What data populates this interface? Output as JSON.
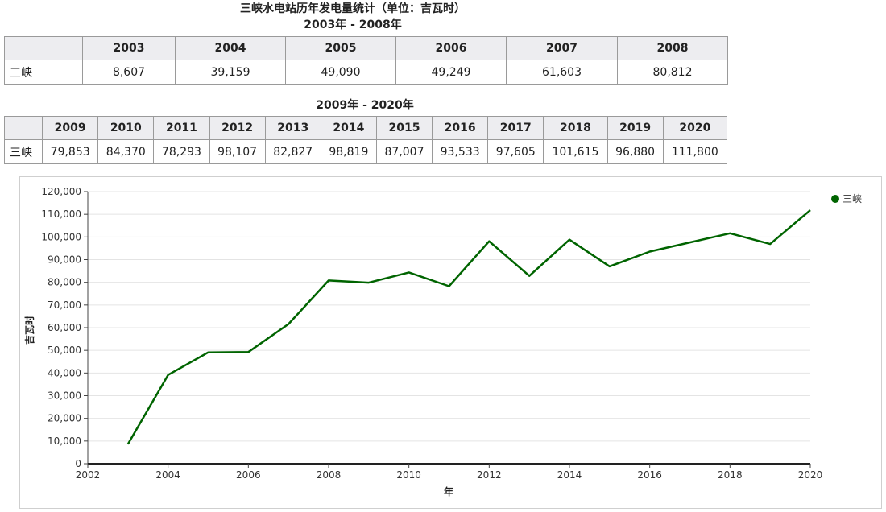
{
  "title": "三峡水电站历年发电量统计（单位：吉瓦时）",
  "table1": {
    "caption": "2003年 - 2008年",
    "row_label": "三峡",
    "years": [
      "2003",
      "2004",
      "2005",
      "2006",
      "2007",
      "2008"
    ],
    "values": [
      "8,607",
      "39,159",
      "49,090",
      "49,249",
      "61,603",
      "80,812"
    ]
  },
  "table2": {
    "caption": "2009年 - 2020年",
    "row_label": "三峡",
    "years": [
      "2009",
      "2010",
      "2011",
      "2012",
      "2013",
      "2014",
      "2015",
      "2016",
      "2017",
      "2018",
      "2019",
      "2020"
    ],
    "values": [
      "79,853",
      "84,370",
      "78,293",
      "98,107",
      "82,827",
      "98,819",
      "87,007",
      "93,533",
      "97,605",
      "101,615",
      "96,880",
      "111,800"
    ]
  },
  "chart_data": {
    "type": "line",
    "title": "",
    "xlabel": "年",
    "ylabel": "吉瓦时",
    "xlim": [
      2002,
      2020
    ],
    "ylim": [
      0,
      120000
    ],
    "x_ticks": [
      2002,
      2004,
      2006,
      2008,
      2010,
      2012,
      2014,
      2016,
      2018,
      2020
    ],
    "y_ticks": [
      0,
      10000,
      20000,
      30000,
      40000,
      50000,
      60000,
      70000,
      80000,
      90000,
      100000,
      110000,
      120000
    ],
    "y_tick_labels": [
      "0",
      "10,000",
      "20,000",
      "30,000",
      "40,000",
      "50,000",
      "60,000",
      "70,000",
      "80,000",
      "90,000",
      "100,000",
      "110,000",
      "120,000"
    ],
    "grid": true,
    "legend_position": "top-right",
    "series": [
      {
        "name": "三峡",
        "color": "#006400",
        "x": [
          2003,
          2004,
          2005,
          2006,
          2007,
          2008,
          2009,
          2010,
          2011,
          2012,
          2013,
          2014,
          2015,
          2016,
          2017,
          2018,
          2019,
          2020
        ],
        "values": [
          8607,
          39159,
          49090,
          49249,
          61603,
          80812,
          79853,
          84370,
          78293,
          98107,
          82827,
          98819,
          87007,
          93533,
          97605,
          101615,
          96880,
          111800
        ]
      }
    ]
  }
}
